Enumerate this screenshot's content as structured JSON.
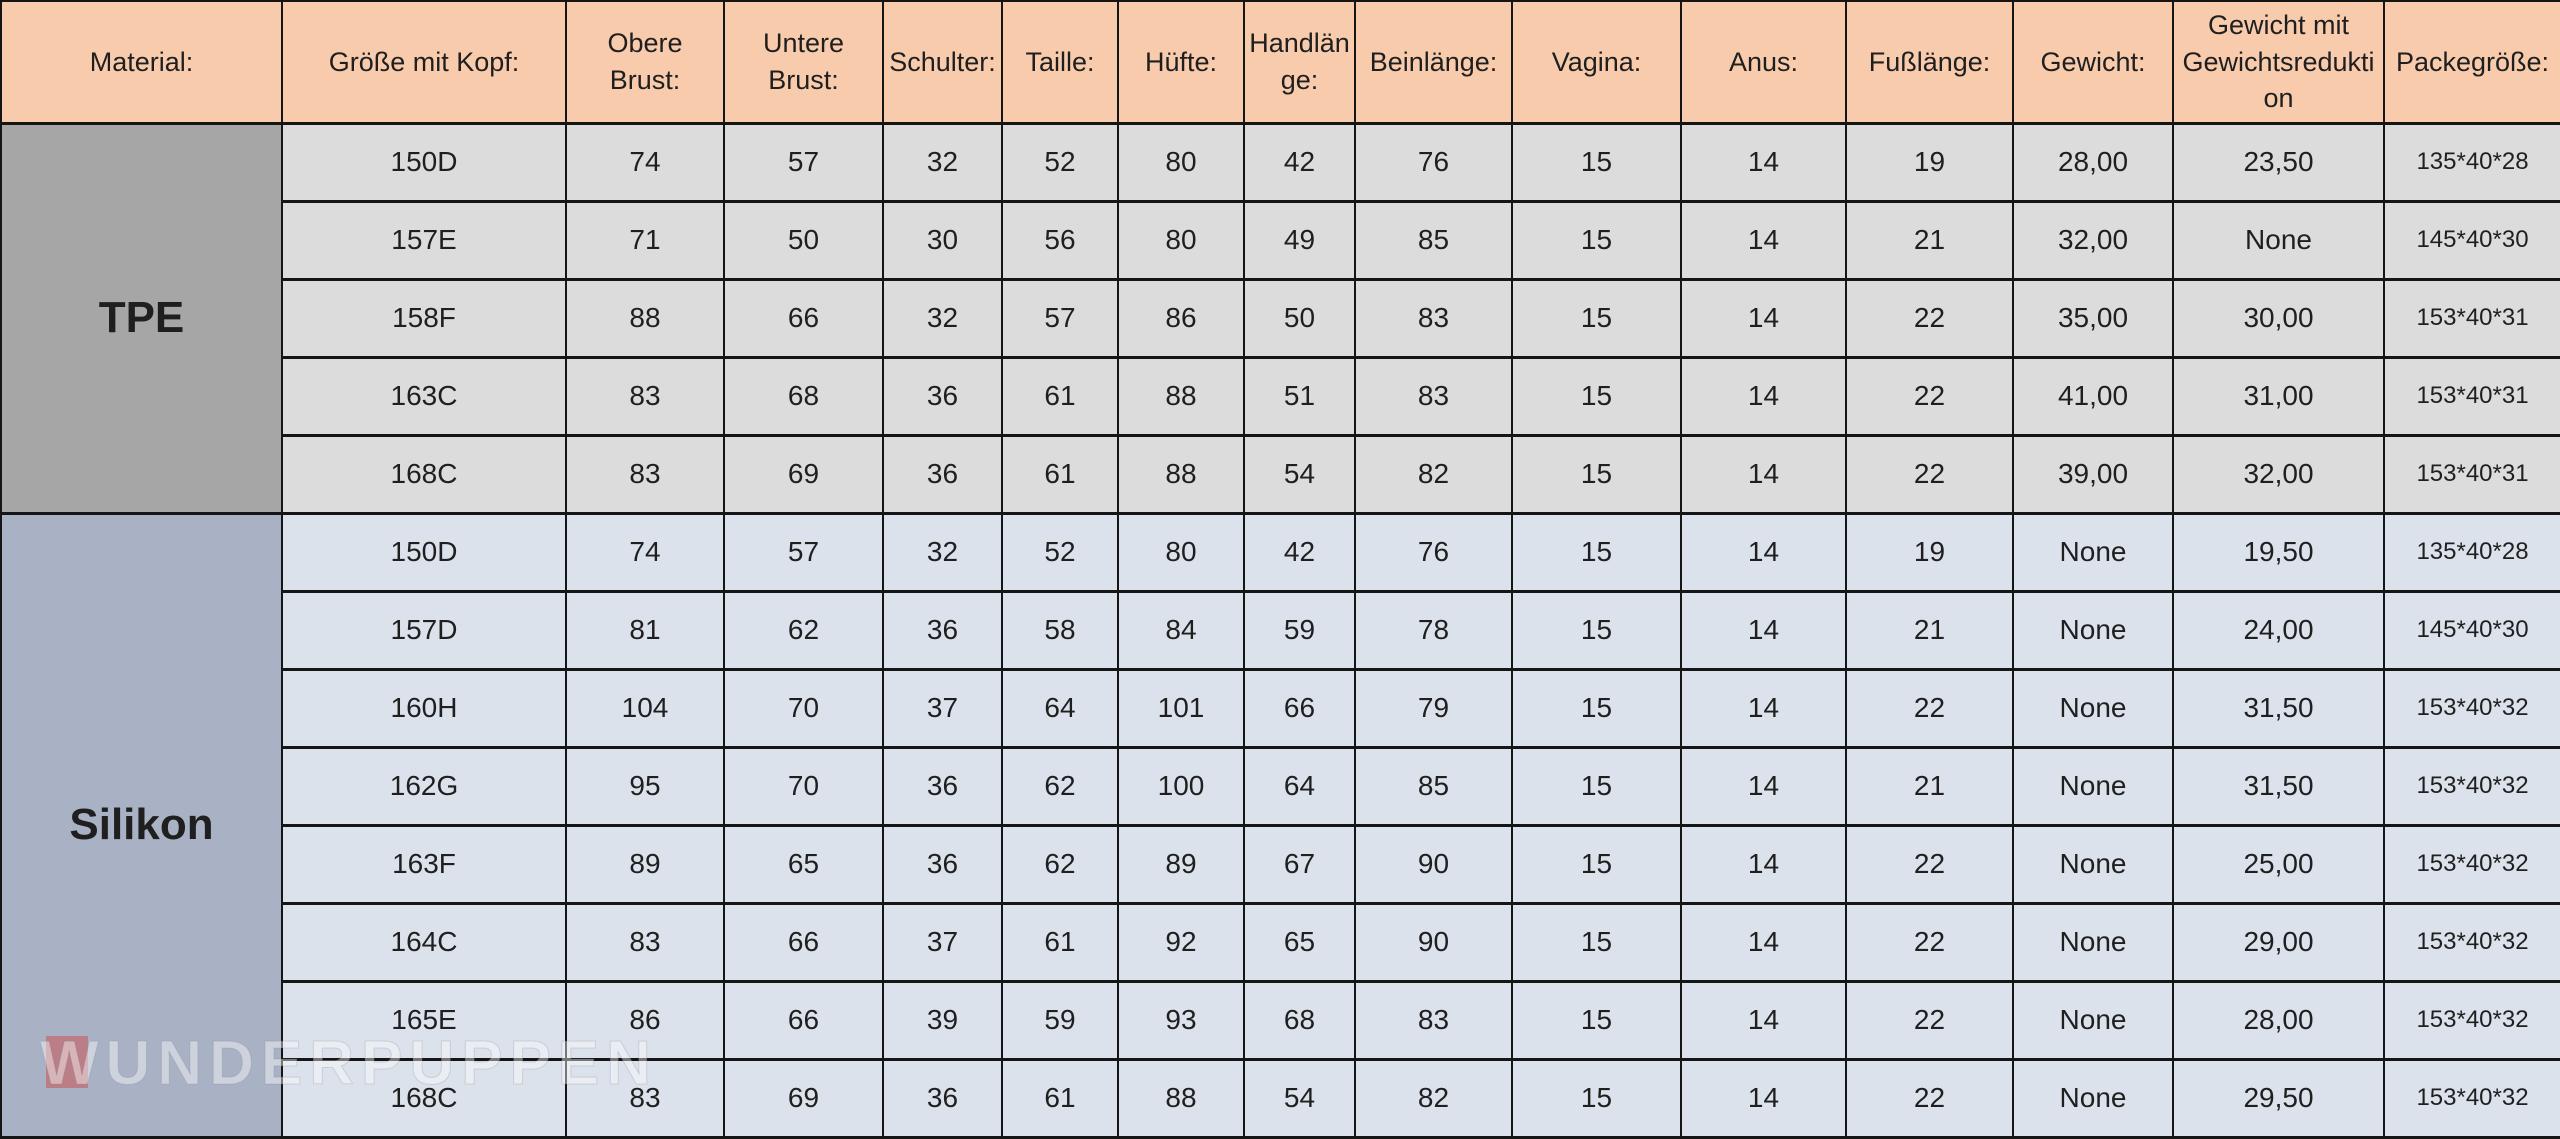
{
  "table": {
    "columns": [
      "Material:",
      "Größe mit Kopf:",
      "Obere Brust:",
      "Untere Brust:",
      "Schulter:",
      "Taille:",
      "Hüfte:",
      "Handlänge:",
      "Beinlänge:",
      "Vagina:",
      "Anus:",
      "Fußlänge:",
      "Gewicht:",
      "Gewicht mit Gewichtsreduktion",
      "Packegröße:"
    ],
    "sections": [
      {
        "material": "TPE",
        "rows": [
          [
            "150D",
            "74",
            "57",
            "32",
            "52",
            "80",
            "42",
            "76",
            "15",
            "14",
            "19",
            "28,00",
            "23,50",
            "135*40*28"
          ],
          [
            "157E",
            "71",
            "50",
            "30",
            "56",
            "80",
            "49",
            "85",
            "15",
            "14",
            "21",
            "32,00",
            "None",
            "145*40*30"
          ],
          [
            "158F",
            "88",
            "66",
            "32",
            "57",
            "86",
            "50",
            "83",
            "15",
            "14",
            "22",
            "35,00",
            "30,00",
            "153*40*31"
          ],
          [
            "163C",
            "83",
            "68",
            "36",
            "61",
            "88",
            "51",
            "83",
            "15",
            "14",
            "22",
            "41,00",
            "31,00",
            "153*40*31"
          ],
          [
            "168C",
            "83",
            "69",
            "36",
            "61",
            "88",
            "54",
            "82",
            "15",
            "14",
            "22",
            "39,00",
            "32,00",
            "153*40*31"
          ]
        ]
      },
      {
        "material": "Silikon",
        "rows": [
          [
            "150D",
            "74",
            "57",
            "32",
            "52",
            "80",
            "42",
            "76",
            "15",
            "14",
            "19",
            "None",
            "19,50",
            "135*40*28"
          ],
          [
            "157D",
            "81",
            "62",
            "36",
            "58",
            "84",
            "59",
            "78",
            "15",
            "14",
            "21",
            "None",
            "24,00",
            "145*40*30"
          ],
          [
            "160H",
            "104",
            "70",
            "37",
            "64",
            "101",
            "66",
            "79",
            "15",
            "14",
            "22",
            "None",
            "31,50",
            "153*40*32"
          ],
          [
            "162G",
            "95",
            "70",
            "36",
            "62",
            "100",
            "64",
            "85",
            "15",
            "14",
            "21",
            "None",
            "31,50",
            "153*40*32"
          ],
          [
            "163F",
            "89",
            "65",
            "36",
            "62",
            "89",
            "67",
            "90",
            "15",
            "14",
            "22",
            "None",
            "25,00",
            "153*40*32"
          ],
          [
            "164C",
            "83",
            "66",
            "37",
            "61",
            "92",
            "65",
            "90",
            "15",
            "14",
            "22",
            "None",
            "29,00",
            "153*40*32"
          ],
          [
            "165E",
            "86",
            "66",
            "39",
            "59",
            "93",
            "68",
            "83",
            "15",
            "14",
            "22",
            "None",
            "28,00",
            "153*40*32"
          ],
          [
            "168C",
            "83",
            "69",
            "36",
            "61",
            "88",
            "54",
            "82",
            "15",
            "14",
            "22",
            "None",
            "29,50",
            "153*40*32"
          ]
        ]
      }
    ]
  },
  "watermark": {
    "text": "WUNDERPUPPEN"
  },
  "colors": {
    "header_bg": "#f8cbad",
    "tpe_material_bg": "#a6a6a6",
    "tpe_row_bg": "#dcdcdc",
    "silikon_material_bg": "#a9b2c4",
    "silikon_row_bg": "#dbe2eb",
    "border": "#151515",
    "watermark_square": "#cb5454"
  }
}
